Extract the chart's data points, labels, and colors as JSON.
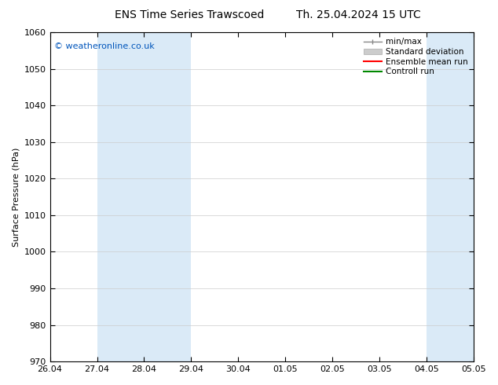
{
  "title_left": "ENS Time Series Trawscoed",
  "title_right": "Th. 25.04.2024 15 UTC",
  "ylabel": "Surface Pressure (hPa)",
  "ylim": [
    970,
    1060
  ],
  "yticks": [
    970,
    980,
    990,
    1000,
    1010,
    1020,
    1030,
    1040,
    1050,
    1060
  ],
  "xtick_labels": [
    "26.04",
    "27.04",
    "28.04",
    "29.04",
    "30.04",
    "01.05",
    "02.05",
    "03.05",
    "04.05",
    "05.05"
  ],
  "xtick_positions": [
    0,
    1,
    2,
    3,
    4,
    5,
    6,
    7,
    8,
    9
  ],
  "xlim": [
    0,
    9.0
  ],
  "background_color": "#ffffff",
  "plot_bg_color": "#ffffff",
  "shaded_bands": [
    {
      "x_start": 1.0,
      "x_end": 3.0,
      "color": "#daeaf7"
    },
    {
      "x_start": 8.0,
      "x_end": 9.0,
      "color": "#daeaf7"
    }
  ],
  "shaded_right_edge": {
    "x_start": 9.0,
    "x_end": 9.0,
    "color": "#daeaf7"
  },
  "copyright_text": "© weatheronline.co.uk",
  "copyright_color": "#0055bb",
  "legend_fontsize": 7.5,
  "title_fontsize": 10,
  "ylabel_fontsize": 8,
  "tick_fontsize": 8,
  "grid_color": "#cccccc",
  "grid_lw": 0.5
}
